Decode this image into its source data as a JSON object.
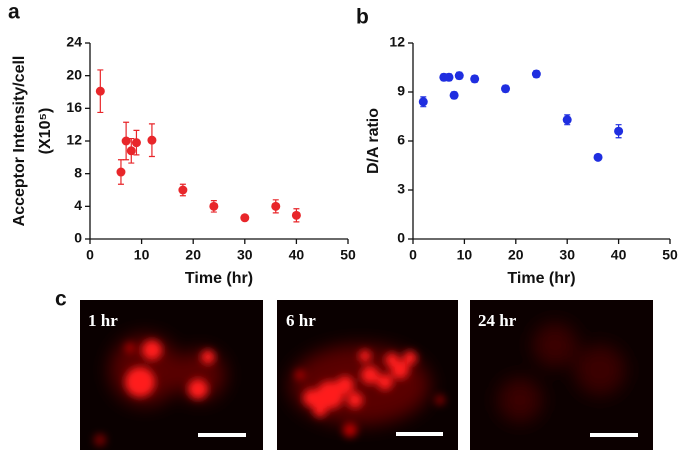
{
  "panel_labels": [
    "a",
    "b",
    "c"
  ],
  "chart_data": [
    {
      "type": "scatter",
      "y_label": "Acceptor Intensity/cell",
      "y_label_2": "(X10⁵)",
      "x_label": "Time (hr)",
      "xlim": [
        0,
        50
      ],
      "xticks": [
        0,
        10,
        20,
        30,
        40,
        50
      ],
      "ylim": [
        0,
        24
      ],
      "yticks": [
        0,
        4,
        8,
        12,
        16,
        20,
        24
      ],
      "series": [
        {
          "color": "#e8262a",
          "x": [
            2,
            6,
            7,
            8,
            9,
            12,
            18,
            24,
            30,
            36,
            40
          ],
          "values": [
            18.1,
            8.2,
            12.0,
            10.8,
            11.8,
            12.1,
            6.0,
            4.0,
            2.6,
            4.0,
            2.9
          ],
          "errors": [
            2.6,
            1.5,
            2.3,
            1.5,
            1.5,
            2.0,
            0.7,
            0.7,
            0.3,
            0.8,
            0.8
          ]
        }
      ]
    },
    {
      "type": "scatter",
      "y_label": "D/A ratio",
      "x_label": "Time (hr)",
      "xlim": [
        0,
        50
      ],
      "xticks": [
        0,
        10,
        20,
        30,
        40,
        50
      ],
      "ylim": [
        0,
        12
      ],
      "yticks": [
        0,
        3,
        6,
        9,
        12
      ],
      "series": [
        {
          "color": "#1f2ee0",
          "x": [
            2,
            6,
            7,
            8,
            9,
            12,
            18,
            24,
            30,
            36,
            40
          ],
          "values": [
            8.4,
            9.9,
            9.9,
            8.8,
            10.0,
            9.8,
            9.2,
            10.1,
            7.3,
            5.0,
            6.6
          ],
          "errors": [
            0.3,
            0.2,
            0.2,
            0.2,
            0.2,
            0.2,
            0.2,
            0.2,
            0.3,
            0.1,
            0.4
          ]
        }
      ]
    }
  ],
  "images": [
    {
      "label": "1 hr"
    },
    {
      "label": "6 hr"
    },
    {
      "label": "24 hr"
    }
  ]
}
